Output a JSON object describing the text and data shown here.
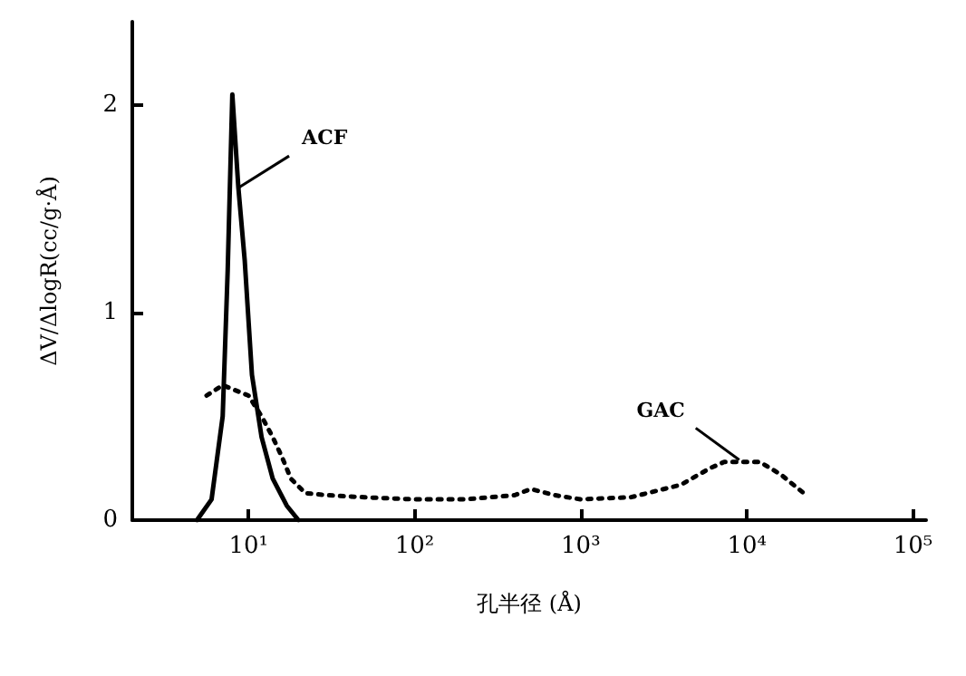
{
  "chart_data": {
    "type": "line",
    "xlabel": "孔半径 (Å)",
    "ylabel": "ΔV/ΔlogR(cc/g·Å)",
    "series": [
      {
        "color": "#000000",
        "line_style": "solid",
        "x": [
          4.9,
          6,
          7,
          7.5,
          8,
          8.7,
          9.5,
          10.5,
          12,
          14,
          17,
          20
        ],
        "values": [
          0,
          0.1,
          0.5,
          1.2,
          2.05,
          1.6,
          1.25,
          0.7,
          0.4,
          0.2,
          0.07,
          0
        ]
      },
      {
        "color": "#000000",
        "line_style": "dotted",
        "x": [
          5.6,
          7,
          10,
          12,
          14,
          16,
          18,
          22,
          30,
          50,
          100,
          200,
          400,
          500,
          700,
          1000,
          2000,
          4000,
          6000,
          7300,
          12000,
          16000,
          22000
        ],
        "values": [
          0.6,
          0.65,
          0.6,
          0.5,
          0.4,
          0.3,
          0.2,
          0.13,
          0.12,
          0.11,
          0.1,
          0.1,
          0.12,
          0.15,
          0.12,
          0.1,
          0.11,
          0.17,
          0.25,
          0.28,
          0.28,
          0.22,
          0.13
        ]
      }
    ],
    "annotations": [
      {
        "text": "ACF",
        "x": 8.7,
        "y": 1.6
      },
      {
        "text": "GAC",
        "x": 9000,
        "y": 0.29
      }
    ],
    "log": "x",
    "xlim": [
      2,
      120000
    ],
    "xticks": [
      {
        "value": 10,
        "label": "10¹"
      },
      {
        "value": 100,
        "label": "10²"
      },
      {
        "value": 1000,
        "label": "10³"
      },
      {
        "value": 10000,
        "label": "10⁴"
      },
      {
        "value": 100000,
        "label": "10⁵"
      }
    ],
    "ylim": [
      0,
      2.4
    ],
    "yticks": [
      0,
      1,
      2
    ],
    "grid": false,
    "marker": "none"
  }
}
